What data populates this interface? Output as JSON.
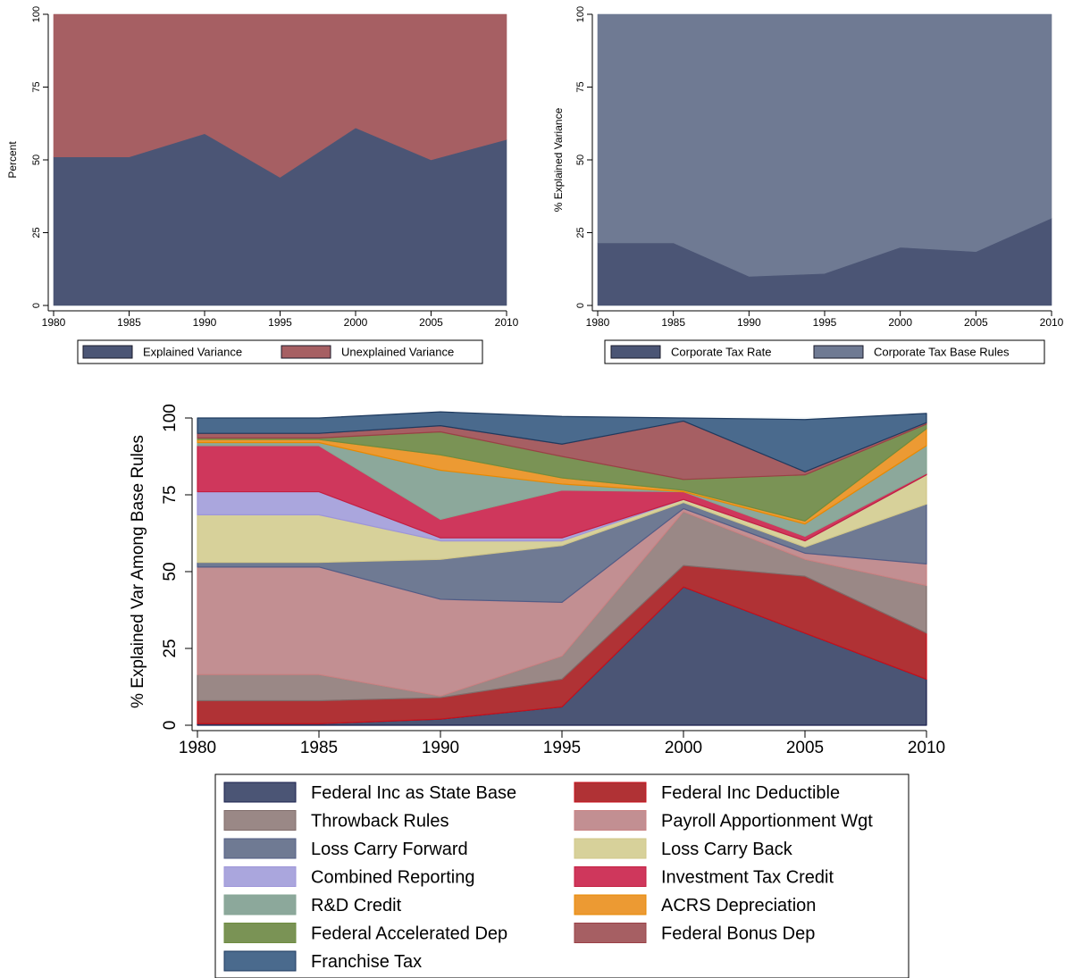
{
  "chart_data": [
    {
      "type": "area",
      "stacked": true,
      "ylabel": "Percent",
      "xlabel": "",
      "x": [
        1980,
        1985,
        1990,
        1995,
        2000,
        2005,
        2010
      ],
      "ylim": [
        0,
        100
      ],
      "yticks": [
        0,
        25,
        50,
        75,
        100
      ],
      "legend_position": "bottom",
      "series": [
        {
          "name": "Explained Variance",
          "color": "#4b5575",
          "values": [
            51,
            51,
            59,
            44,
            61,
            50,
            57
          ]
        },
        {
          "name": "Unexplained Variance",
          "color": "#a65f63",
          "values": [
            49,
            49,
            41,
            56,
            39,
            50,
            43
          ]
        }
      ]
    },
    {
      "type": "area",
      "stacked": true,
      "ylabel": "% Explained Variance",
      "xlabel": "",
      "x": [
        1980,
        1985,
        1990,
        1995,
        2000,
        2005,
        2010
      ],
      "ylim": [
        0,
        100
      ],
      "yticks": [
        0,
        25,
        50,
        75,
        100
      ],
      "legend_position": "bottom",
      "series": [
        {
          "name": "Corporate Tax Rate",
          "color": "#4b5575",
          "values": [
            21.5,
            21.5,
            10,
            11,
            20,
            18.5,
            30
          ]
        },
        {
          "name": "Corporate Tax Base Rules",
          "color": "#6f7a93",
          "values": [
            78.5,
            78.5,
            90,
            89,
            80,
            81.5,
            70
          ]
        }
      ]
    },
    {
      "type": "area",
      "stacked": true,
      "ylabel": "% Explained Var Among Base Rules",
      "xlabel": "",
      "x": [
        1980,
        1985,
        1990,
        1995,
        2000,
        2005,
        2010
      ],
      "ylim": [
        0,
        100
      ],
      "yticks": [
        0,
        25,
        50,
        75,
        100
      ],
      "legend_position": "bottom",
      "series": [
        {
          "name": "Federal Inc as State Base",
          "color": "#4b5575",
          "stroke": "#1a1f4d",
          "values": [
            0.5,
            0.5,
            2,
            6,
            45,
            30,
            15
          ]
        },
        {
          "name": "Federal Inc Deductible",
          "color": "#b03235",
          "stroke": "#c8101b",
          "values": [
            7.5,
            7.5,
            7,
            9,
            7,
            18.5,
            15
          ]
        },
        {
          "name": "Throwback Rules",
          "color": "#9a8886",
          "stroke": "#806c6a",
          "values": [
            8.5,
            8.5,
            0.5,
            7.5,
            17.5,
            5.5,
            15.5
          ]
        },
        {
          "name": "Payroll Apportionment Wgt",
          "color": "#c28f92",
          "stroke": "#c98283",
          "values": [
            35,
            35,
            31.5,
            17.5,
            1,
            2,
            7
          ]
        },
        {
          "name": "Loss Carry Forward",
          "color": "#6f7a93",
          "stroke": "#515c86",
          "values": [
            1.5,
            1.5,
            13,
            18.5,
            2,
            2,
            19.5
          ]
        },
        {
          "name": "Loss Carry Back",
          "color": "#d7d19a",
          "stroke": "#d1c789",
          "values": [
            15.5,
            15.5,
            6,
            1.5,
            1,
            2,
            9.5
          ]
        },
        {
          "name": "Combined Reporting",
          "color": "#aaa6dd",
          "stroke": "#9d95d9",
          "values": [
            7.5,
            7.5,
            1,
            1,
            0,
            0,
            0
          ]
        },
        {
          "name": "Investment Tax Credit",
          "color": "#cf375c",
          "stroke": "#c31e40",
          "values": [
            15,
            15,
            6,
            15.5,
            2.5,
            1.5,
            0.5
          ]
        },
        {
          "name": "R&D Credit",
          "color": "#8ca89b",
          "stroke": "#86a694",
          "values": [
            1,
            1,
            16,
            2,
            0,
            4,
            9
          ]
        },
        {
          "name": "ACRS Depreciation",
          "color": "#ec9a33",
          "stroke": "#e88800",
          "values": [
            1,
            1,
            5,
            2,
            0.5,
            1,
            5.5
          ]
        },
        {
          "name": "Federal Accelerated Dep",
          "color": "#7a9355",
          "stroke": "#6e8c40",
          "values": [
            0.5,
            0.5,
            7.5,
            7,
            3.5,
            15,
            1.5
          ]
        },
        {
          "name": "Federal Bonus Dep",
          "color": "#a65f63",
          "stroke": "#9a4046",
          "values": [
            1.5,
            1.5,
            2,
            4,
            19,
            1,
            0.5
          ]
        },
        {
          "name": "Franchise Tax",
          "color": "#4a6a8d",
          "stroke": "#1e3a5f",
          "values": [
            5,
            5,
            4.5,
            9,
            1,
            17,
            3
          ]
        }
      ]
    }
  ]
}
